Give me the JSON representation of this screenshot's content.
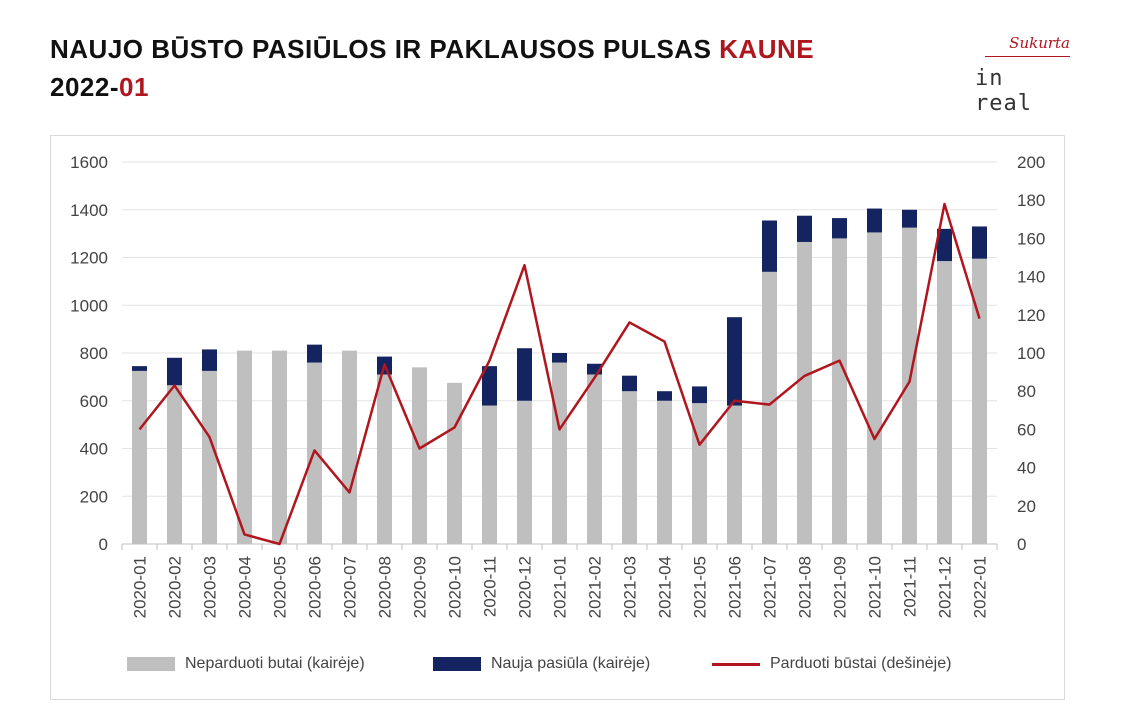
{
  "header": {
    "title_main": "NAUJO BŪSTO PASIŪLOS IR PAKLAUSOS PULSAS",
    "title_city": "KAUNE",
    "title_year": "2022-",
    "title_month": "01"
  },
  "logo": {
    "top_text": "Sukurta",
    "bottom_text": "in real"
  },
  "colors": {
    "accent": "#b0161e",
    "unsold": "#bfbfbf",
    "new_supply": "#142460",
    "sold_line": "#b0161e"
  },
  "chart_data": {
    "type": "bar",
    "stacked": true,
    "categories": [
      "2020-01",
      "2020-02",
      "2020-03",
      "2020-04",
      "2020-05",
      "2020-06",
      "2020-07",
      "2020-08",
      "2020-09",
      "2020-10",
      "2020-11",
      "2020-12",
      "2021-01",
      "2021-02",
      "2021-03",
      "2021-04",
      "2021-05",
      "2021-06",
      "2021-07",
      "2021-08",
      "2021-09",
      "2021-10",
      "2021-11",
      "2021-12",
      "2022-01"
    ],
    "series": [
      {
        "name": "Neparduoti butai (kairėje)",
        "type": "bar",
        "axis": "left",
        "values": [
          725,
          665,
          725,
          810,
          810,
          760,
          810,
          710,
          740,
          675,
          580,
          600,
          760,
          710,
          640,
          600,
          590,
          580,
          1140,
          1265,
          1280,
          1305,
          1325,
          1185,
          1195
        ]
      },
      {
        "name": "Nauja pasiūla (kairėje)",
        "type": "bar",
        "axis": "left",
        "values": [
          20,
          115,
          90,
          0,
          0,
          75,
          0,
          75,
          0,
          0,
          165,
          220,
          40,
          45,
          65,
          40,
          70,
          370,
          215,
          110,
          85,
          100,
          75,
          135,
          135
        ]
      },
      {
        "name": "Parduoti būstai (dešinėje)",
        "type": "line",
        "axis": "right",
        "values": [
          60,
          83,
          56,
          5,
          0,
          49,
          27,
          94,
          50,
          61,
          96,
          146,
          60,
          87,
          116,
          106,
          52,
          75,
          73,
          88,
          96,
          55,
          85,
          178,
          118
        ]
      }
    ],
    "left_axis": {
      "min": 0,
      "max": 1600,
      "ticks": [
        "0",
        "200",
        "400",
        "600",
        "800",
        "1000",
        "1200",
        "1400",
        "1600"
      ]
    },
    "right_axis": {
      "min": 0,
      "max": 200,
      "ticks": [
        "0",
        "20",
        "40",
        "60",
        "80",
        "100",
        "120",
        "140",
        "160",
        "180",
        "200"
      ]
    },
    "grid": true,
    "legend_position": "bottom"
  }
}
